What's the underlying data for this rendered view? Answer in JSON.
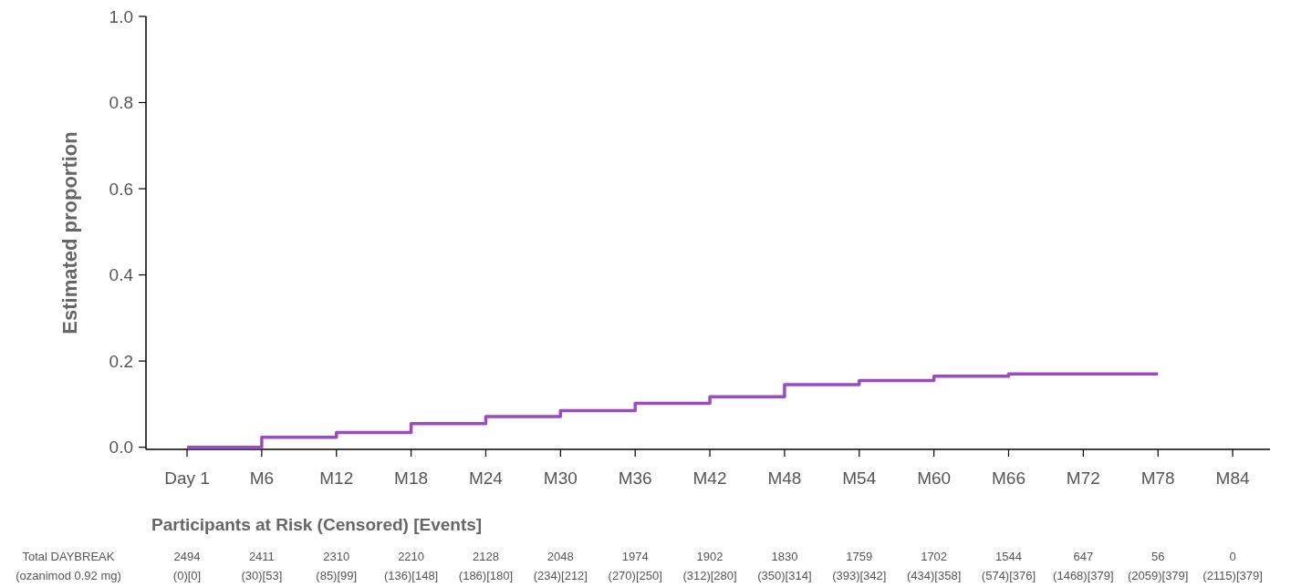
{
  "chart_data": {
    "type": "step",
    "ylabel": "Estimated proportion",
    "categories": [
      "Day 1",
      "M6",
      "M12",
      "M18",
      "M24",
      "M30",
      "M36",
      "M42",
      "M48",
      "M54",
      "M60",
      "M66",
      "M72",
      "M78",
      "M84"
    ],
    "series": [
      {
        "color": "#9b4dbf",
        "values": [
          0,
          0.023,
          0.034,
          0.055,
          0.071,
          0.085,
          0.102,
          0.117,
          0.145,
          0.155,
          0.165,
          0.17,
          0.17,
          0.17,
          null
        ]
      }
    ],
    "ylim": [
      -0.005,
      1.0
    ],
    "yticks": [
      {
        "value": 0,
        "label": "0.0"
      },
      {
        "value": 0.2,
        "label": "0.2"
      },
      {
        "value": 0.4,
        "label": "0.4"
      },
      {
        "value": 0.6,
        "label": "0.6"
      },
      {
        "value": 0.8,
        "label": "0.8"
      },
      {
        "value": 1.0,
        "label": "1.0"
      }
    ],
    "grid": false,
    "line_style": "solid",
    "marker": "none",
    "annotations": [
      "Participants at Risk (Censored) [Events]",
      "Total DAYBREAK",
      "(ozanimod 0.92 mg)",
      "2494",
      "(0)[0]",
      "2411",
      "(30)[53]",
      "2310",
      "(85)[99]",
      "2210",
      "(136)[148]",
      "2128",
      "(186)[180]",
      "2048",
      "(234)[212]",
      "1974",
      "(270)[250]",
      "1902",
      "(312)[280]",
      "1830",
      "(350)[314]",
      "1759",
      "(393)[342]",
      "1702",
      "(434)[358]",
      "1544",
      "(574)[376]",
      "647",
      "(1468)[379]",
      "56",
      "(2059)[379]",
      "0",
      "(2115)[379]"
    ]
  }
}
